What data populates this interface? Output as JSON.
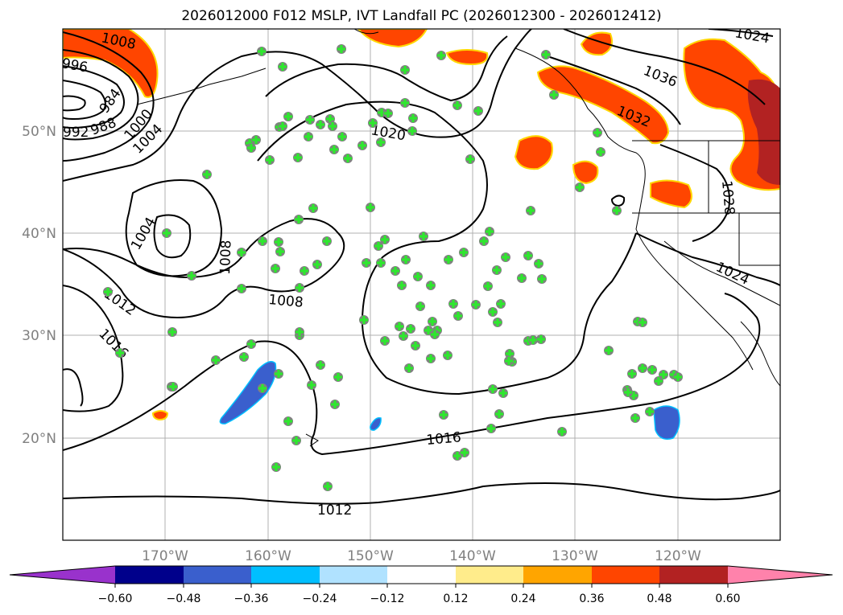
{
  "title": "2026012000 F012 MSLP, IVT Landfall PC (2026012300 - 2026012412)",
  "map": {
    "lon_ticks": [
      "170°W",
      "160°W",
      "150°W",
      "140°W",
      "130°W",
      "120°W"
    ],
    "lat_ticks": [
      "50°N",
      "40°N",
      "30°N",
      "20°N"
    ],
    "isobar_labels": [
      "1008",
      "996",
      "992",
      "988",
      "984",
      "1000",
      "1004",
      "1004",
      "1008",
      "1008",
      "1012",
      "1016",
      "1020",
      "1016",
      "1012",
      "1024",
      "1036",
      "1032",
      "1028",
      "1024"
    ]
  },
  "colorbar": {
    "labels": [
      "−0.60",
      "−0.48",
      "−0.36",
      "−0.24",
      "−0.12",
      "0.12",
      "0.24",
      "0.36",
      "0.48",
      "0.60"
    ],
    "colors": [
      "#9932cc",
      "#00008b",
      "#3a5fcd",
      "#00bfff",
      "#b0e2ff",
      "#ffffff",
      "#ffec8b",
      "#ffa500",
      "#ff4500",
      "#b22222",
      "#ff82ab"
    ]
  }
}
